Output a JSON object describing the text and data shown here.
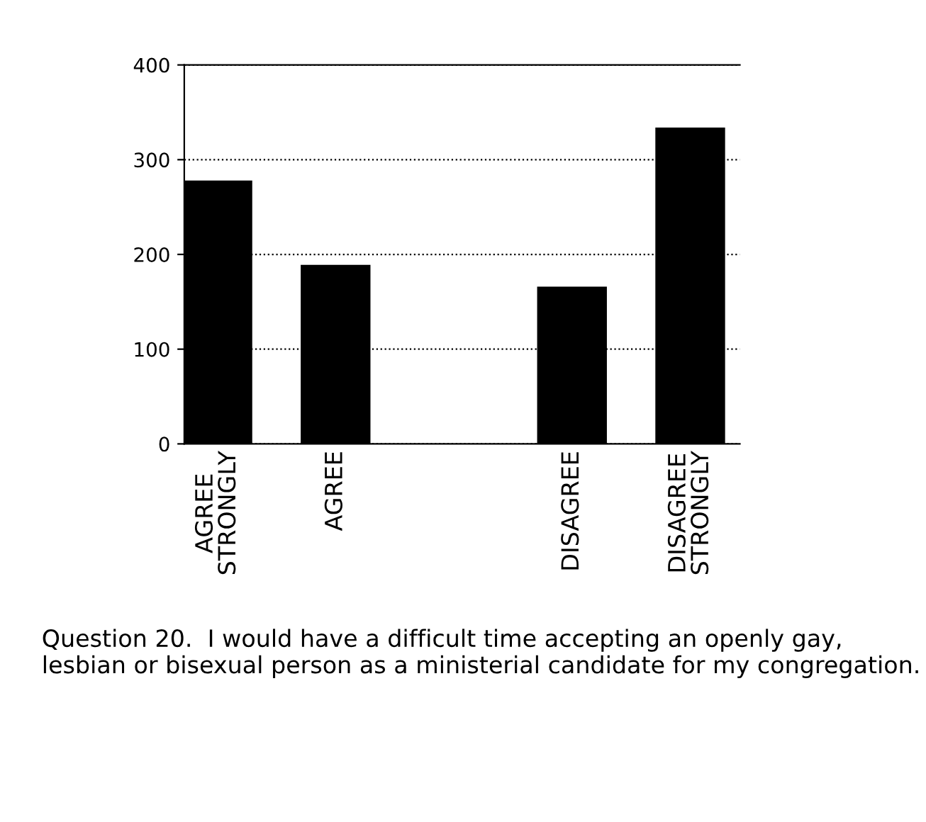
{
  "chart_data": {
    "type": "bar",
    "categories": [
      "AGREE\nSTRONGLY",
      "AGREE",
      null,
      "DISAGREE",
      "DISAGREE\nSTRONGLY"
    ],
    "values": [
      278,
      189,
      null,
      166,
      334
    ],
    "color": "#000000",
    "ylim": [
      0,
      400
    ],
    "yticks": [
      0,
      100,
      200,
      300,
      400
    ],
    "grid": "y",
    "line_style": "dotted",
    "annotations": [
      "Question 20.  I would have a difficult time accepting an openly gay, lesbian or bisexual person as a ministerial candidate for my congregation."
    ]
  }
}
